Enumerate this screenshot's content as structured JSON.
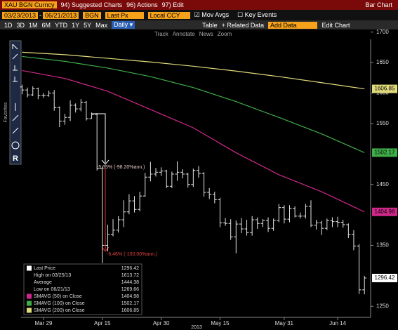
{
  "toolbar": {
    "security": "XAU BGN Curncy",
    "menus": [
      "94) Suggested Charts",
      "96) Actions",
      "97) Edit"
    ],
    "chart_kind": "Bar Chart"
  },
  "settings": {
    "start": "03/23/2013",
    "separator": "-",
    "end": "06/21/2013",
    "source": "BGN",
    "field": "Last Px",
    "currency": "Local CCY",
    "mov_avgs": "Mov Avgs",
    "key_events": "Key Events"
  },
  "periods": [
    "1D",
    "3D",
    "1M",
    "6M",
    "YTD",
    "1Y",
    "5Y",
    "Max"
  ],
  "frequency": "Daily ▾",
  "buttons": [
    "Table",
    "+ Related Data",
    "Add Data",
    "Edit Chart"
  ],
  "tools": [
    "Track",
    "Annotate",
    "News",
    "Zoom"
  ],
  "favorites": "Favorites",
  "chart_data": {
    "type": "ohlc",
    "x_title": "2013",
    "categories": [
      null,
      null,
      null,
      null,
      "Mar 29",
      null,
      null,
      null,
      null,
      null,
      null,
      null,
      null,
      null,
      null,
      "Apr 15",
      null,
      null,
      null,
      null,
      null,
      null,
      null,
      null,
      null,
      null,
      "Apr 30",
      null,
      null,
      null,
      null,
      null,
      null,
      null,
      null,
      null,
      null,
      "May 15",
      null,
      null,
      null,
      null,
      null,
      null,
      null,
      null,
      null,
      null,
      null,
      "May 31",
      null,
      null,
      null,
      null,
      null,
      null,
      null,
      null,
      null,
      "Jun 14",
      null,
      null,
      null,
      null,
      null
    ],
    "ohlc": {
      "color": "#e6e6e6",
      "open": [
        1610,
        1605,
        1597,
        1607,
        1596,
        1596,
        1600,
        1576,
        1554,
        1560,
        1580,
        1574,
        1585,
        1558,
        1565,
        1476,
        1350,
        1368,
        1375,
        1392,
        1405,
        1423,
        1409,
        1431,
        1462,
        1467,
        1470,
        1472,
        1447,
        1467,
        1470,
        1467,
        1450,
        1473,
        1468,
        1437,
        1434,
        1425,
        1387,
        1386,
        1364,
        1385,
        1377,
        1371,
        1392,
        1386,
        1391,
        1378,
        1391,
        1412,
        1393,
        1411,
        1398,
        1398,
        1414,
        1383,
        1387,
        1378,
        1391,
        1389,
        1388,
        1384,
        1368,
        1349,
        1277
      ],
      "high": [
        1613.72,
        1609,
        1611,
        1609,
        1600,
        1604,
        1605,
        1578,
        1566,
        1588,
        1583,
        1590,
        1587,
        1568,
        1567,
        1480,
        1384,
        1393,
        1398,
        1424,
        1434,
        1431,
        1438,
        1469,
        1487,
        1477,
        1478,
        1474,
        1471,
        1488,
        1475,
        1469,
        1476,
        1480,
        1470,
        1444,
        1438,
        1428,
        1395,
        1393,
        1391,
        1395,
        1392,
        1398,
        1396,
        1393,
        1396,
        1394,
        1418,
        1416,
        1416,
        1414,
        1404,
        1418,
        1424,
        1392,
        1390,
        1394,
        1396,
        1397,
        1392,
        1386,
        1375,
        1352,
        1300
      ],
      "low": [
        1598,
        1593,
        1595,
        1590,
        1592,
        1594,
        1571,
        1544,
        1548,
        1554,
        1568,
        1570,
        1555,
        1558,
        1473,
        1321,
        1340,
        1365,
        1371,
        1380,
        1401,
        1404,
        1406,
        1430,
        1455,
        1463,
        1464,
        1444,
        1444,
        1456,
        1460,
        1445,
        1446,
        1461,
        1430,
        1426,
        1419,
        1380,
        1382,
        1359,
        1337,
        1370,
        1366,
        1366,
        1377,
        1380,
        1372,
        1374,
        1388,
        1386,
        1388,
        1396,
        1394,
        1394,
        1380,
        1376,
        1367,
        1375,
        1380,
        1380,
        1379,
        1362,
        1342,
        1270,
        1269.66
      ],
      "close": [
        1605,
        1597,
        1607,
        1596,
        1596,
        1600,
        1576,
        1554,
        1560,
        1580,
        1574,
        1585,
        1558,
        1565,
        1476,
        1350,
        1368,
        1375,
        1392,
        1405,
        1423,
        1409,
        1431,
        1462,
        1467,
        1470,
        1472,
        1447,
        1467,
        1470,
        1467,
        1450,
        1473,
        1468,
        1437,
        1434,
        1425,
        1387,
        1386,
        1364,
        1385,
        1377,
        1371,
        1392,
        1386,
        1391,
        1378,
        1391,
        1412,
        1393,
        1411,
        1398,
        1398,
        1414,
        1383,
        1387,
        1378,
        1391,
        1389,
        1388,
        1384,
        1368,
        1349,
        1277,
        1296.42
      ]
    },
    "moving_averages": [
      {
        "name": "SMAVG (50) on Close",
        "color": "#d0288a",
        "x": [
          0,
          8,
          16,
          24,
          32,
          40,
          48,
          56,
          64
        ],
        "values": [
          1637,
          1624,
          1603,
          1573,
          1543,
          1502,
          1466,
          1438,
          1404.98
        ]
      },
      {
        "name": "SMAVG (100) on Close",
        "color": "#3fae49",
        "x": [
          0,
          8,
          16,
          24,
          32,
          40,
          48,
          56,
          64
        ],
        "values": [
          1660,
          1652,
          1641,
          1627,
          1609,
          1586,
          1560,
          1533,
          1502.17
        ]
      },
      {
        "name": "SMAVG (200) on Close",
        "color": "#e2db7c",
        "x": [
          0,
          8,
          16,
          24,
          32,
          40,
          48,
          56,
          64
        ],
        "values": [
          1667,
          1663,
          1657,
          1651,
          1644,
          1636,
          1627,
          1617,
          1606.85
        ]
      }
    ],
    "legend": {
      "last": "Last Price",
      "high": "High on 03/25/13",
      "average": "Average",
      "average_value": 1444.38,
      "low": "Low on 06/21/13"
    },
    "annotations": [
      "-5.35% (-98.20%ann.)",
      "-6.46% (-100.00%ann.)"
    ],
    "ylim": [
      1233,
      1702
    ],
    "yticks": [
      1250,
      1350,
      1450,
      1550,
      1600,
      1650,
      1700
    ]
  }
}
